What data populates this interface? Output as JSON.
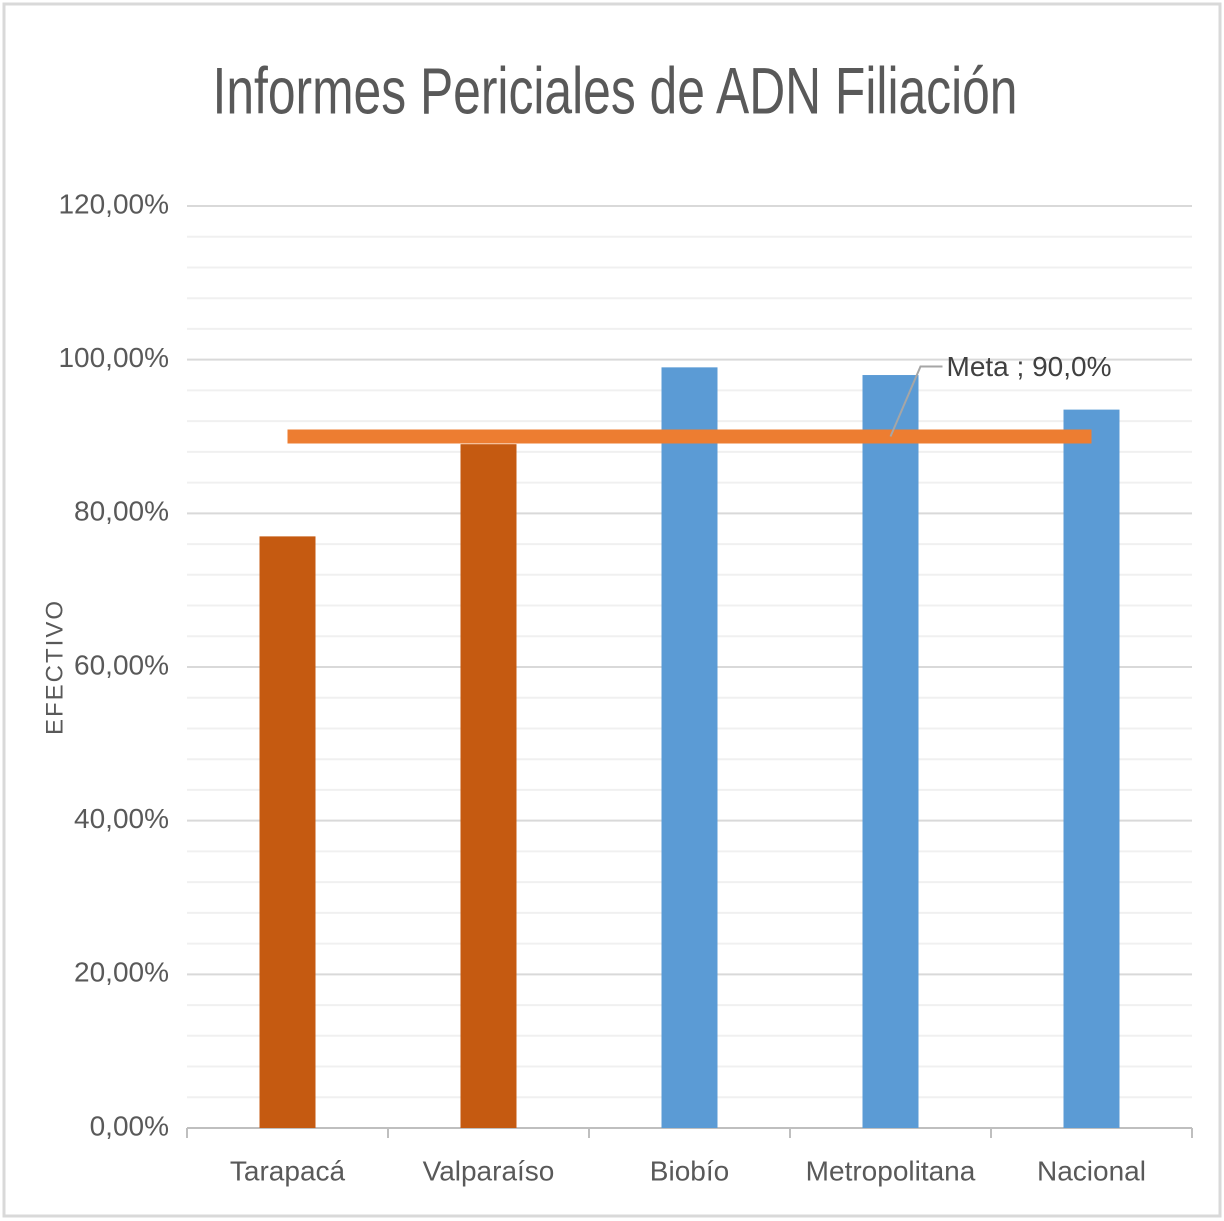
{
  "chart_data": {
    "type": "bar",
    "title": "Informes Periciales de ADN Filiación",
    "y_label": "EFECTIVO",
    "categories": [
      "Tarapacá",
      "Valparaíso",
      "Biobío",
      "Metropolitana",
      "Nacional"
    ],
    "values": [
      77,
      89,
      99,
      98,
      93.5
    ],
    "colors": [
      "#c55a11",
      "#c55a11",
      "#5b9bd5",
      "#5b9bd5",
      "#5b9bd5"
    ],
    "ylim": [
      0,
      120
    ],
    "yticks": [
      {
        "value": 0,
        "label": "0,00%"
      },
      {
        "value": 20,
        "label": "20,00%"
      },
      {
        "value": 40,
        "label": "40,00%"
      },
      {
        "value": 60,
        "label": "60,00%"
      },
      {
        "value": 80,
        "label": "80,00%"
      },
      {
        "value": 100,
        "label": "100,00%"
      },
      {
        "value": 120,
        "label": "120,00%"
      }
    ],
    "minor_yticks": [
      4,
      8,
      12,
      16,
      24,
      28,
      32,
      36,
      44,
      48,
      52,
      56,
      64,
      68,
      72,
      76,
      84,
      88,
      92,
      96,
      104,
      108,
      112,
      116
    ],
    "grid": true,
    "meta": {
      "label": "Meta ; 90,0%",
      "value": 90,
      "color": "#ed7d31"
    }
  }
}
